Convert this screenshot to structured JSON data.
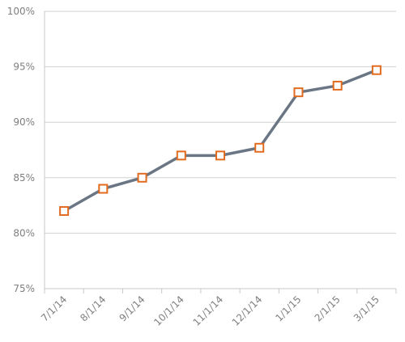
{
  "chart_data": {
    "type": "line",
    "categories": [
      "7/1/14",
      "8/1/14",
      "9/1/14",
      "10/1/14",
      "11/1/14",
      "12/1/14",
      "1/1/15",
      "2/1/15",
      "3/1/15"
    ],
    "series": [
      {
        "values": [
          82,
          84,
          85,
          87,
          87,
          87.7,
          92.7,
          93.3,
          94.7
        ]
      }
    ],
    "yticks": [
      "75%",
      "80%",
      "85%",
      "90%",
      "95%",
      "100%"
    ],
    "ylim": [
      75,
      100
    ],
    "grid": true,
    "legend": "none",
    "line_color": "#6b7685",
    "marker_edge_color": "#e26b1f",
    "marker_fill_color": "#ffffff",
    "marker": "square"
  }
}
